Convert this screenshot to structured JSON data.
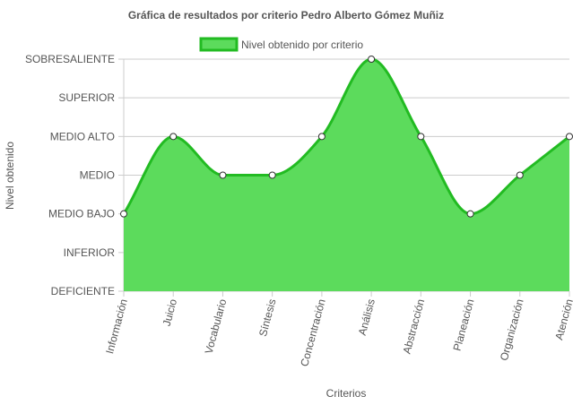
{
  "chart_data": {
    "type": "area",
    "title": "Gráfica de resultados por criterio Pedro Alberto Gómez Muñiz",
    "xlabel": "Criterios",
    "ylabel": "Nivel obtenido",
    "levels": [
      "DEFICIENTE",
      "INFERIOR",
      "MEDIO BAJO",
      "MEDIO",
      "MEDIO ALTO",
      "SUPERIOR",
      "SOBRESALIENTE"
    ],
    "categories": [
      "Información",
      "Juicio",
      "Vocabulario",
      "Síntesis",
      "Concentración",
      "Análisis",
      "Abstracción",
      "Planeación",
      "Organización",
      "Atención"
    ],
    "series": [
      {
        "name": "Nivel obtenido por criterio",
        "values": [
          "MEDIO BAJO",
          "MEDIO ALTO",
          "MEDIO",
          "MEDIO",
          "MEDIO ALTO",
          "SOBRESALIENTE",
          "MEDIO ALTO",
          "MEDIO BAJO",
          "MEDIO",
          "MEDIO ALTO"
        ]
      }
    ],
    "legend_position": "top",
    "grid": true,
    "colors": {
      "fill": "#5cdb5c",
      "line": "#22bb22",
      "point_fill": "#ffffff",
      "point_stroke": "#333333"
    }
  }
}
